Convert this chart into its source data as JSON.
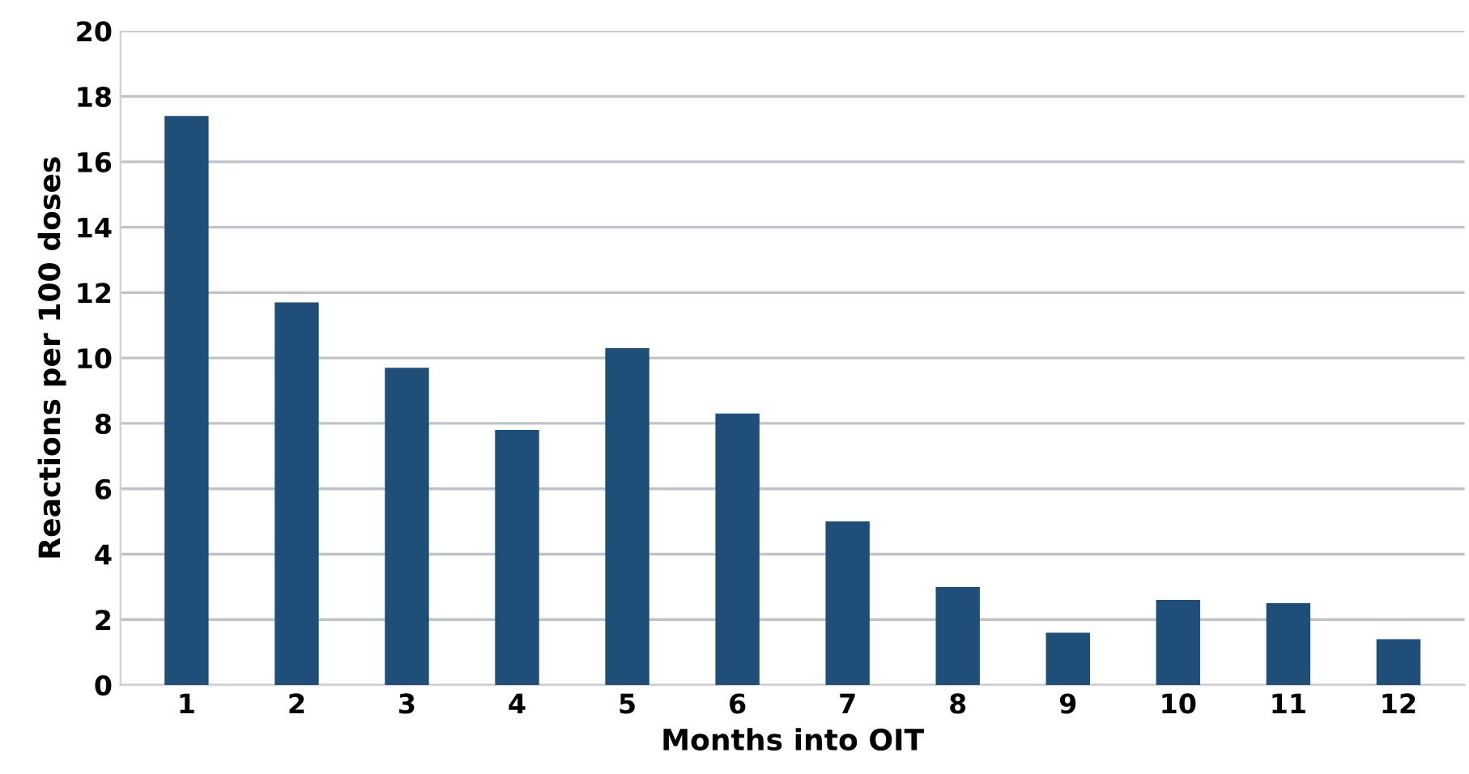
{
  "chart_data": {
    "type": "bar",
    "xlabel": "Months into OIT",
    "ylabel": "Reactions per 100 doses",
    "categories": [
      "1",
      "2",
      "3",
      "4",
      "5",
      "6",
      "7",
      "8",
      "9",
      "10",
      "11",
      "12"
    ],
    "values": [
      17.4,
      11.7,
      9.7,
      7.8,
      10.3,
      8.3,
      5.0,
      3.0,
      1.6,
      2.6,
      2.5,
      1.4
    ],
    "color": "#1f4e79",
    "ylim": [
      0,
      20
    ],
    "yticks": [
      0,
      2,
      4,
      6,
      8,
      10,
      12,
      14,
      16,
      18,
      20
    ],
    "grid": "y"
  }
}
